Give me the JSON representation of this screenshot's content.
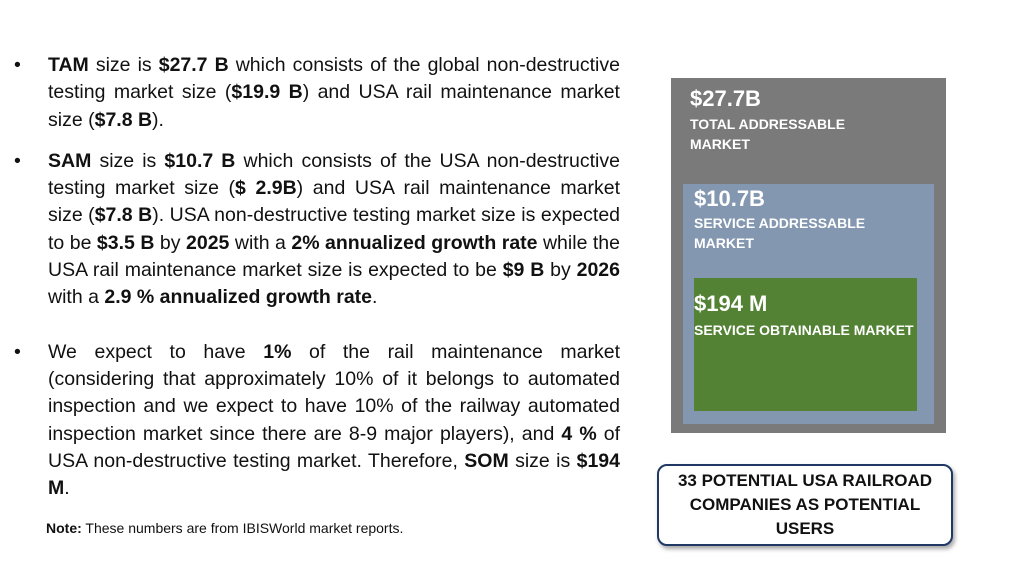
{
  "bullets": {
    "b1": {
      "t0": "TAM",
      "t1": " size is ",
      "t2": "$27.7 B",
      "t3": " which consists of the global non-destructive testing market size (",
      "t4": "$19.9 B",
      "t5": ") and USA rail maintenance market size (",
      "t6": "$7.8 B",
      "t7": ")."
    },
    "b2": {
      "t0": "SAM",
      "t1": " size is ",
      "t2": "$10.7 B",
      "t3": " which consists of the USA non-destructive testing market size (",
      "t4": "$ 2.9B",
      "t5": ") and USA rail maintenance market size (",
      "t6": "$7.8 B",
      "t7": "). USA non-destructive testing market size is expected to be ",
      "t8": "$3.5 B",
      "t9": " by ",
      "t10": "2025",
      "t11": " with a ",
      "t12": "2% annualized growth rate",
      "t13": " while the USA rail maintenance market size is expected to be ",
      "t14": "$9 B",
      "t15": " by ",
      "t16": "2026",
      "t17": " with a ",
      "t18": "2.9 % annualized growth rate",
      "t19": "."
    },
    "b3": {
      "t0": "We expect to have ",
      "t1": "1%",
      "t2": " of the rail maintenance market (considering that approximately 10% of it belongs to automated inspection and we expect to have 10% of the railway automated inspection market since there are 8-9 major players), and ",
      "t3": "4 %",
      "t4": " of USA non-destructive testing market. Therefore, ",
      "t5": "SOM",
      "t6": " size is ",
      "t7": "$194 M",
      "t8": "."
    },
    "marker": "•"
  },
  "note": {
    "label": "Note:",
    "text": " These numbers are from IBISWorld market reports."
  },
  "boxes": {
    "tam": {
      "value": "$27.7B",
      "label": "TOTAL ADDRESSABLE MARKET",
      "color": "#7a7a7a"
    },
    "sam": {
      "value": "$10.7B",
      "label": "SERVICE ADDRESSABLE MARKET",
      "color": "#8497b0"
    },
    "som": {
      "value": "$194 M",
      "label": "SERVICE OBTAINABLE MARKET",
      "color": "#548235"
    }
  },
  "callout": {
    "text": "33 POTENTIAL USA RAILROAD COMPANIES AS POTENTIAL USERS",
    "border_color": "#1f3864"
  }
}
